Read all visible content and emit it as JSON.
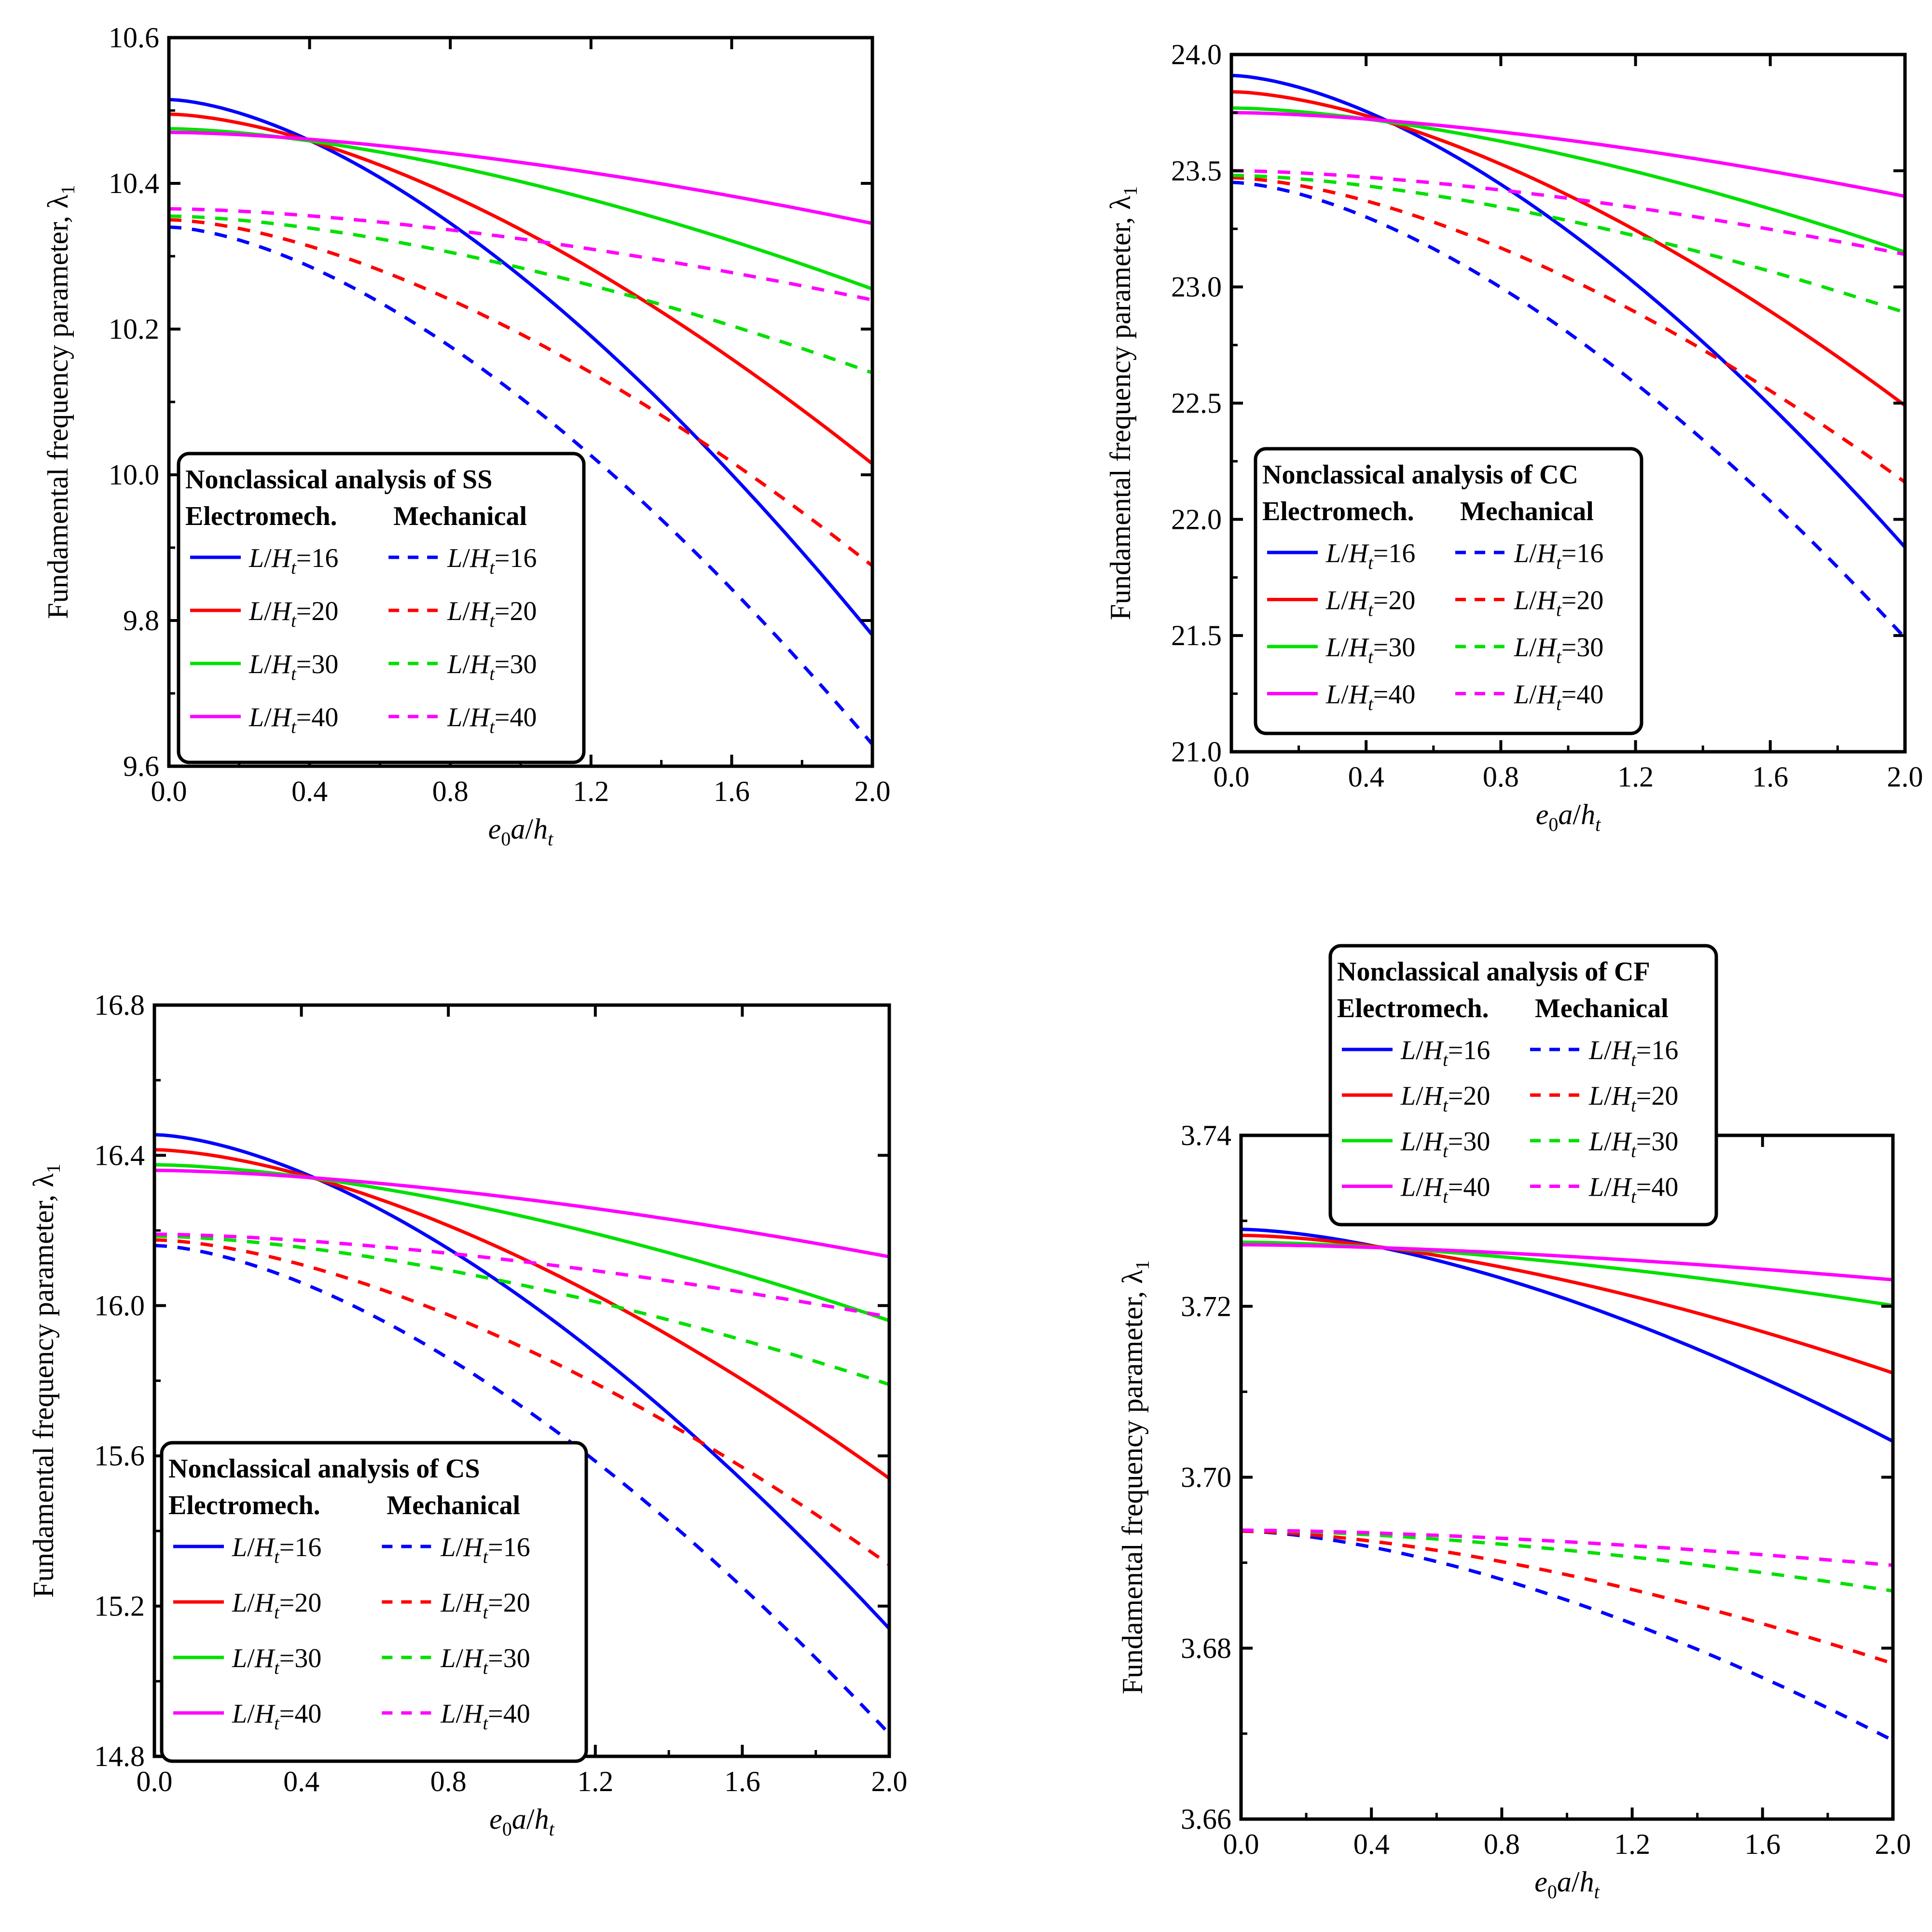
{
  "chart_data": [
    {
      "id": "ss",
      "type": "line",
      "boundary_condition": "SS",
      "title": "",
      "xlabel": "e0a/ht",
      "xlabel_parts": {
        "e": "e",
        "sub0": "0",
        "a": "a",
        "slash": "/",
        "h": "h",
        "subt": "t"
      },
      "ylabel": "Fundamental frequency parameter, λ1",
      "ylabel_parts": {
        "text": "Fundamental frequency parameter, λ",
        "sub": "1"
      },
      "xlim": [
        0.0,
        2.0
      ],
      "ylim": [
        9.6,
        10.6
      ],
      "xticks": [
        "0.0",
        "0.4",
        "0.8",
        "1.2",
        "1.6",
        "2.0"
      ],
      "yticks": [
        "9.6",
        "9.8",
        "10.0",
        "10.2",
        "10.4",
        "10.6"
      ],
      "legend_position": "bottom-left",
      "legend": {
        "title": "Nonclassical analysis of SS",
        "col1": "Electromech.",
        "col2": "Mechanical"
      },
      "series": [
        {
          "name": "L/Ht=16",
          "analysis": "Electromech.",
          "color": "#0000ff",
          "dash": false,
          "y0": 10.515,
          "y1": 9.78
        },
        {
          "name": "L/Ht=20",
          "analysis": "Electromech.",
          "color": "#ff0000",
          "dash": false,
          "y0": 10.495,
          "y1": 10.015
        },
        {
          "name": "L/Ht=30",
          "analysis": "Electromech.",
          "color": "#00e000",
          "dash": false,
          "y0": 10.475,
          "y1": 10.255
        },
        {
          "name": "L/Ht=40",
          "analysis": "Electromech.",
          "color": "#ff00ff",
          "dash": false,
          "y0": 10.47,
          "y1": 10.345
        },
        {
          "name": "L/Ht=16",
          "analysis": "Mechanical",
          "color": "#0000ff",
          "dash": true,
          "y0": 10.34,
          "y1": 9.63
        },
        {
          "name": "L/Ht=20",
          "analysis": "Mechanical",
          "color": "#ff0000",
          "dash": true,
          "y0": 10.35,
          "y1": 9.875
        },
        {
          "name": "L/Ht=30",
          "analysis": "Mechanical",
          "color": "#00e000",
          "dash": true,
          "y0": 10.355,
          "y1": 10.14
        },
        {
          "name": "L/Ht=40",
          "analysis": "Mechanical",
          "color": "#ff00ff",
          "dash": true,
          "y0": 10.365,
          "y1": 10.24
        }
      ]
    },
    {
      "id": "cc",
      "type": "line",
      "boundary_condition": "CC",
      "title": "",
      "xlabel": "e0a/ht",
      "xlabel_parts": {
        "e": "e",
        "sub0": "0",
        "a": "a",
        "slash": "/",
        "h": "h",
        "subt": "t"
      },
      "ylabel": "Fundamental frequency parameter, λ1",
      "ylabel_parts": {
        "text": "Fundamental frequency parameter, λ",
        "sub": "1"
      },
      "xlim": [
        0.0,
        2.0
      ],
      "ylim": [
        21.0,
        24.0
      ],
      "xticks": [
        "0.0",
        "0.4",
        "0.8",
        "1.2",
        "1.6",
        "2.0"
      ],
      "yticks": [
        "21.0",
        "21.5",
        "22.0",
        "22.5",
        "23.0",
        "23.5",
        "24.0"
      ],
      "legend_position": "bottom-left",
      "legend": {
        "title": "Nonclassical analysis of CC",
        "col1": "Electromech.",
        "col2": "Mechanical"
      },
      "series": [
        {
          "name": "L/Ht=16",
          "analysis": "Electromech.",
          "color": "#0000ff",
          "dash": false,
          "y0": 23.91,
          "y1": 21.88
        },
        {
          "name": "L/Ht=20",
          "analysis": "Electromech.",
          "color": "#ff0000",
          "dash": false,
          "y0": 23.84,
          "y1": 22.49
        },
        {
          "name": "L/Ht=30",
          "analysis": "Electromech.",
          "color": "#00e000",
          "dash": false,
          "y0": 23.77,
          "y1": 23.15
        },
        {
          "name": "L/Ht=40",
          "analysis": "Electromech.",
          "color": "#ff00ff",
          "dash": false,
          "y0": 23.75,
          "y1": 23.39
        },
        {
          "name": "L/Ht=16",
          "analysis": "Mechanical",
          "color": "#0000ff",
          "dash": true,
          "y0": 23.45,
          "y1": 21.49
        },
        {
          "name": "L/Ht=20",
          "analysis": "Mechanical",
          "color": "#ff0000",
          "dash": true,
          "y0": 23.47,
          "y1": 22.16
        },
        {
          "name": "L/Ht=30",
          "analysis": "Mechanical",
          "color": "#00e000",
          "dash": true,
          "y0": 23.48,
          "y1": 22.89
        },
        {
          "name": "L/Ht=40",
          "analysis": "Mechanical",
          "color": "#ff00ff",
          "dash": true,
          "y0": 23.5,
          "y1": 23.14
        }
      ]
    },
    {
      "id": "cs",
      "type": "line",
      "boundary_condition": "CS",
      "title": "",
      "xlabel": "e0a/ht",
      "xlabel_parts": {
        "e": "e",
        "sub0": "0",
        "a": "a",
        "slash": "/",
        "h": "h",
        "subt": "t"
      },
      "ylabel": "Fundamental frequency parameter, λ1",
      "ylabel_parts": {
        "text": "Fundamental frequency parameter, λ",
        "sub": "1"
      },
      "xlim": [
        0.0,
        2.0
      ],
      "ylim": [
        14.8,
        16.8
      ],
      "xticks": [
        "0.0",
        "0.4",
        "0.8",
        "1.2",
        "1.6",
        "2.0"
      ],
      "yticks": [
        "14.8",
        "15.2",
        "15.6",
        "16.0",
        "16.4",
        "16.8"
      ],
      "legend_position": "bottom-left",
      "legend": {
        "title": "Nonclassical analysis of CS",
        "col1": "Electromech.",
        "col2": "Mechanical"
      },
      "series": [
        {
          "name": "L/Ht=16",
          "analysis": "Electromech.",
          "color": "#0000ff",
          "dash": false,
          "y0": 16.455,
          "y1": 15.14
        },
        {
          "name": "L/Ht=20",
          "analysis": "Electromech.",
          "color": "#ff0000",
          "dash": false,
          "y0": 16.415,
          "y1": 15.54
        },
        {
          "name": "L/Ht=30",
          "analysis": "Electromech.",
          "color": "#00e000",
          "dash": false,
          "y0": 16.375,
          "y1": 15.96
        },
        {
          "name": "L/Ht=40",
          "analysis": "Electromech.",
          "color": "#ff00ff",
          "dash": false,
          "y0": 16.36,
          "y1": 16.13
        },
        {
          "name": "L/Ht=16",
          "analysis": "Mechanical",
          "color": "#0000ff",
          "dash": true,
          "y0": 16.16,
          "y1": 14.86
        },
        {
          "name": "L/Ht=20",
          "analysis": "Mechanical",
          "color": "#ff0000",
          "dash": true,
          "y0": 16.175,
          "y1": 15.31
        },
        {
          "name": "L/Ht=30",
          "analysis": "Mechanical",
          "color": "#00e000",
          "dash": true,
          "y0": 16.185,
          "y1": 15.79
        },
        {
          "name": "L/Ht=40",
          "analysis": "Mechanical",
          "color": "#ff00ff",
          "dash": true,
          "y0": 16.19,
          "y1": 15.97
        }
      ]
    },
    {
      "id": "cf",
      "type": "line",
      "boundary_condition": "CF",
      "title": "",
      "xlabel": "e0a/ht",
      "xlabel_parts": {
        "e": "e",
        "sub0": "0",
        "a": "a",
        "slash": "/",
        "h": "h",
        "subt": "t"
      },
      "ylabel": "Fundamental frequency parameter, λ1",
      "ylabel_parts": {
        "text": "Fundamental frequency parameter, λ",
        "sub": "1"
      },
      "xlim": [
        0.0,
        2.0
      ],
      "ylim": [
        3.66,
        3.74
      ],
      "xticks": [
        "0.0",
        "0.4",
        "0.8",
        "1.2",
        "1.6",
        "2.0"
      ],
      "yticks": [
        "3.66",
        "3.68",
        "3.70",
        "3.72",
        "3.74"
      ],
      "legend_position": "top-left, above plot",
      "legend": {
        "title": "Nonclassical analysis of CF",
        "col1": "Electromech.",
        "col2": "Mechanical"
      },
      "series": [
        {
          "name": "L/Ht=16",
          "analysis": "Electromech.",
          "color": "#0000ff",
          "dash": false,
          "y0": 3.729,
          "y1": 3.7042
        },
        {
          "name": "L/Ht=20",
          "analysis": "Electromech.",
          "color": "#ff0000",
          "dash": false,
          "y0": 3.7283,
          "y1": 3.7122
        },
        {
          "name": "L/Ht=30",
          "analysis": "Electromech.",
          "color": "#00e000",
          "dash": false,
          "y0": 3.7275,
          "y1": 3.7201
        },
        {
          "name": "L/Ht=40",
          "analysis": "Electromech.",
          "color": "#ff00ff",
          "dash": false,
          "y0": 3.7272,
          "y1": 3.7231
        },
        {
          "name": "L/Ht=16",
          "analysis": "Mechanical",
          "color": "#0000ff",
          "dash": true,
          "y0": 3.6937,
          "y1": 3.6692
        },
        {
          "name": "L/Ht=20",
          "analysis": "Mechanical",
          "color": "#ff0000",
          "dash": true,
          "y0": 3.6937,
          "y1": 3.6782
        },
        {
          "name": "L/Ht=30",
          "analysis": "Mechanical",
          "color": "#00e000",
          "dash": true,
          "y0": 3.6938,
          "y1": 3.6867
        },
        {
          "name": "L/Ht=40",
          "analysis": "Mechanical",
          "color": "#ff00ff",
          "dash": true,
          "y0": 3.6938,
          "y1": 3.6897
        }
      ]
    }
  ]
}
